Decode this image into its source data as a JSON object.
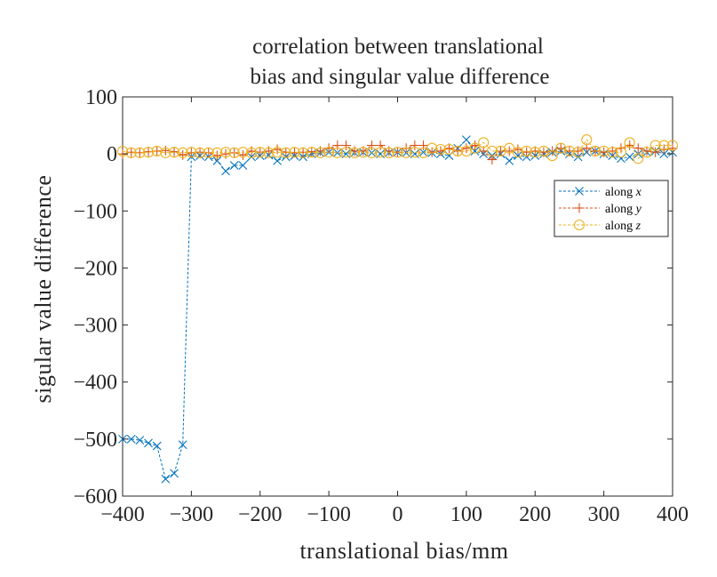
{
  "chart_data": {
    "type": "line",
    "title": [
      "correlation between translational",
      "bias and singular value difference"
    ],
    "xlabel": "translational bias/mm",
    "ylabel": "sigular value difference",
    "xlim": [
      -400,
      400
    ],
    "ylim": [
      -600,
      100
    ],
    "xticks": [
      -400,
      -300,
      -200,
      -100,
      0,
      100,
      200,
      300,
      400
    ],
    "yticks": [
      -600,
      -500,
      -400,
      -300,
      -200,
      -100,
      0,
      100
    ],
    "xtick_labels": [
      "−400",
      "−300",
      "−200",
      "−100",
      "0",
      "100",
      "200",
      "300",
      "400"
    ],
    "ytick_labels": [
      "−600",
      "−500",
      "−400",
      "−300",
      "−200",
      "−100",
      "0",
      "100"
    ],
    "grid": false,
    "legend_position": "right",
    "x": [
      -400,
      -387.5,
      -375,
      -362.5,
      -350,
      -337.5,
      -325,
      -312.5,
      -300,
      -287.5,
      -275,
      -262.5,
      -250,
      -237.5,
      -225,
      -212.5,
      -200,
      -187.5,
      -175,
      -162.5,
      -150,
      -137.5,
      -125,
      -112.5,
      -100,
      -87.5,
      -75,
      -62.5,
      -50,
      -37.5,
      -25,
      -12.5,
      0,
      12.5,
      25,
      37.5,
      50,
      62.5,
      75,
      87.5,
      100,
      112.5,
      125,
      137.5,
      150,
      162.5,
      175,
      187.5,
      200,
      212.5,
      225,
      237.5,
      250,
      262.5,
      275,
      287.5,
      300,
      312.5,
      325,
      337.5,
      350,
      362.5,
      375,
      387.5,
      400
    ],
    "series": [
      {
        "name": "along x",
        "name_prefix": "along ",
        "name_var": "x",
        "color": "#0072BD",
        "marker": "x",
        "values": [
          -500,
          -500,
          -502,
          -507,
          -512,
          -570,
          -560,
          -510,
          -5,
          -3,
          -5,
          -12,
          -30,
          -20,
          -20,
          -5,
          -3,
          -2,
          -12,
          -5,
          -3,
          -5,
          0,
          2,
          3,
          2,
          0,
          2,
          3,
          2,
          0,
          2,
          3,
          2,
          0,
          3,
          2,
          0,
          -3,
          10,
          25,
          5,
          0,
          -3,
          0,
          -12,
          -3,
          -5,
          -3,
          0,
          3,
          5,
          0,
          -5,
          3,
          5,
          0,
          -3,
          -8,
          -5,
          0,
          3,
          5,
          0,
          3
        ]
      },
      {
        "name": "along y",
        "name_prefix": "along ",
        "name_var": "y",
        "color": "#D95319",
        "marker": "plus",
        "values": [
          0,
          3,
          2,
          4,
          5,
          6,
          4,
          -2,
          2,
          3,
          2,
          -3,
          0,
          2,
          -2,
          5,
          3,
          5,
          8,
          3,
          2,
          3,
          4,
          5,
          10,
          15,
          15,
          5,
          5,
          15,
          15,
          5,
          3,
          10,
          15,
          15,
          3,
          5,
          10,
          5,
          10,
          15,
          5,
          -10,
          5,
          5,
          8,
          3,
          5,
          3,
          5,
          10,
          5,
          5,
          10,
          5,
          3,
          5,
          10,
          15,
          10,
          5,
          3,
          8,
          10
        ]
      },
      {
        "name": "along z",
        "name_prefix": "along ",
        "name_var": "z",
        "color": "#EDB120",
        "marker": "circle",
        "values": [
          5,
          2,
          2,
          3,
          5,
          2,
          3,
          2,
          3,
          2,
          2,
          2,
          3,
          2,
          3,
          2,
          3,
          2,
          3,
          2,
          3,
          2,
          3,
          2,
          3,
          2,
          3,
          2,
          3,
          2,
          3,
          2,
          3,
          2,
          3,
          2,
          10,
          8,
          8,
          5,
          5,
          10,
          20,
          5,
          5,
          10,
          3,
          5,
          3,
          5,
          -3,
          10,
          5,
          3,
          25,
          5,
          5,
          3,
          3,
          20,
          -8,
          3,
          15,
          15,
          15
        ]
      }
    ]
  }
}
